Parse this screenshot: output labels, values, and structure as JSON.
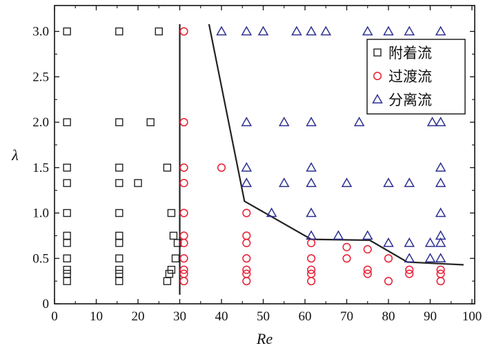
{
  "chart_data": {
    "type": "scatter",
    "xlabel": "Re",
    "ylabel": "λ",
    "xlim": [
      0,
      100
    ],
    "ylim": [
      0,
      3.1
    ],
    "x_ticks": [
      0,
      10,
      20,
      30,
      40,
      50,
      60,
      70,
      80,
      90,
      100
    ],
    "y_ticks": [
      0,
      0.5,
      1.0,
      1.5,
      2.0,
      2.5,
      3.0
    ],
    "y_tick_labels": [
      "0",
      "0.5",
      "1.0",
      "1.5",
      "2.0",
      "2.5",
      "3.0"
    ],
    "grid": false,
    "legend_position": "top-right",
    "series": [
      {
        "name": "附着流",
        "marker": "square",
        "color": "#222222",
        "points": [
          [
            3,
            3.0
          ],
          [
            15.5,
            3.0
          ],
          [
            25,
            3.0
          ],
          [
            3,
            2.0
          ],
          [
            15.5,
            2.0
          ],
          [
            23,
            2.0
          ],
          [
            3,
            1.5
          ],
          [
            15.5,
            1.5
          ],
          [
            27,
            1.5
          ],
          [
            3,
            1.33
          ],
          [
            15.5,
            1.33
          ],
          [
            20,
            1.33
          ],
          [
            3,
            1.0
          ],
          [
            15.5,
            1.0
          ],
          [
            28,
            1.0
          ],
          [
            3,
            0.75
          ],
          [
            15.5,
            0.75
          ],
          [
            28.5,
            0.75
          ],
          [
            3,
            0.67
          ],
          [
            15.5,
            0.67
          ],
          [
            29.5,
            0.67
          ],
          [
            3,
            0.5
          ],
          [
            15.5,
            0.5
          ],
          [
            29,
            0.5
          ],
          [
            3,
            0.375
          ],
          [
            15.5,
            0.375
          ],
          [
            28,
            0.375
          ],
          [
            3,
            0.33
          ],
          [
            15.5,
            0.33
          ],
          [
            27.5,
            0.33
          ],
          [
            3,
            0.25
          ],
          [
            15.5,
            0.25
          ],
          [
            27,
            0.25
          ]
        ]
      },
      {
        "name": "过渡流",
        "marker": "circle",
        "color": "#e8283c",
        "points": [
          [
            31,
            3.0
          ],
          [
            31,
            2.0
          ],
          [
            31,
            1.5
          ],
          [
            40,
            1.5
          ],
          [
            31,
            1.33
          ],
          [
            31,
            1.0
          ],
          [
            31,
            0.75
          ],
          [
            31,
            0.67
          ],
          [
            31,
            0.5
          ],
          [
            31,
            0.375
          ],
          [
            31,
            0.33
          ],
          [
            31,
            0.25
          ],
          [
            46,
            1.0
          ],
          [
            46,
            0.75
          ],
          [
            46,
            0.67
          ],
          [
            46,
            0.5
          ],
          [
            46,
            0.375
          ],
          [
            46,
            0.33
          ],
          [
            46,
            0.25
          ],
          [
            61.5,
            0.67
          ],
          [
            61.5,
            0.5
          ],
          [
            61.5,
            0.375
          ],
          [
            61.5,
            0.33
          ],
          [
            61.5,
            0.25
          ],
          [
            70,
            0.625
          ],
          [
            70,
            0.5
          ],
          [
            75,
            0.6
          ],
          [
            75,
            0.375
          ],
          [
            75,
            0.33
          ],
          [
            80,
            0.5
          ],
          [
            80,
            0.25
          ],
          [
            85,
            0.375
          ],
          [
            85,
            0.33
          ],
          [
            92.5,
            0.375
          ],
          [
            92.5,
            0.33
          ],
          [
            92.5,
            0.25
          ]
        ]
      },
      {
        "name": "分离流",
        "marker": "triangle",
        "color": "#2b2f8f",
        "points": [
          [
            40,
            3.0
          ],
          [
            46,
            3.0
          ],
          [
            50,
            3.0
          ],
          [
            58,
            3.0
          ],
          [
            61.5,
            3.0
          ],
          [
            65,
            3.0
          ],
          [
            75,
            3.0
          ],
          [
            80,
            3.0
          ],
          [
            85,
            3.0
          ],
          [
            92.5,
            3.0
          ],
          [
            46,
            2.0
          ],
          [
            55,
            2.0
          ],
          [
            61.5,
            2.0
          ],
          [
            73,
            2.0
          ],
          [
            90.5,
            2.0
          ],
          [
            92.5,
            2.0
          ],
          [
            46,
            1.5
          ],
          [
            61.5,
            1.5
          ],
          [
            92.5,
            1.5
          ],
          [
            46,
            1.33
          ],
          [
            55,
            1.33
          ],
          [
            61.5,
            1.33
          ],
          [
            70,
            1.33
          ],
          [
            80,
            1.33
          ],
          [
            85,
            1.33
          ],
          [
            92.5,
            1.33
          ],
          [
            52,
            1.0
          ],
          [
            61.5,
            1.0
          ],
          [
            92.5,
            1.0
          ],
          [
            61.5,
            0.75
          ],
          [
            68,
            0.75
          ],
          [
            75,
            0.75
          ],
          [
            92.5,
            0.75
          ],
          [
            80,
            0.67
          ],
          [
            85,
            0.67
          ],
          [
            90,
            0.67
          ],
          [
            92.5,
            0.67
          ],
          [
            85,
            0.5
          ],
          [
            90,
            0.5
          ],
          [
            92.5,
            0.5
          ]
        ]
      }
    ],
    "boundary_lines": [
      {
        "name": "vertical-boundary",
        "points": [
          [
            30,
            3.08
          ],
          [
            30,
            0.1
          ]
        ]
      },
      {
        "name": "curve-boundary",
        "points": [
          [
            37,
            3.08
          ],
          [
            45.5,
            1.13
          ],
          [
            61.5,
            0.71
          ],
          [
            75.5,
            0.7
          ],
          [
            84.5,
            0.46
          ],
          [
            98,
            0.43
          ]
        ]
      }
    ]
  }
}
